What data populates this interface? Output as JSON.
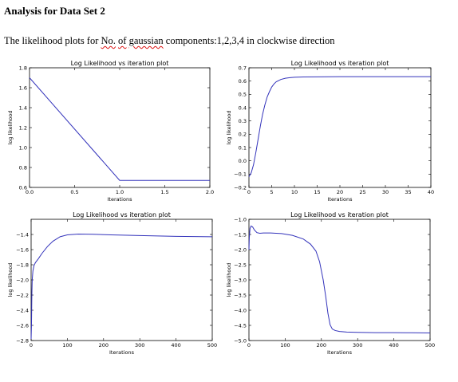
{
  "doc": {
    "heading": "Analysis for Data Set 2",
    "intro_before": "The likelihood plots for ",
    "intro_no": "No.",
    "intro_space1": " ",
    "intro_of": "of",
    "intro_space2": " ",
    "intro_gaussian": "gaussian",
    "intro_after": " components:1,2,3,4 in clockwise direction"
  },
  "chart_data": [
    {
      "type": "line",
      "title": "Log Likelihood vs iteration plot",
      "xlabel": "Iterations",
      "ylabel": "log likelihood",
      "xlim": [
        0,
        2
      ],
      "ylim": [
        0.6,
        1.8
      ],
      "xticks": [
        0.0,
        0.5,
        1.0,
        1.5,
        2.0
      ],
      "xtick_labels": [
        "0.0",
        "0.5",
        "1.0",
        "1.5",
        "2.0"
      ],
      "yticks": [
        0.6,
        0.8,
        1.0,
        1.2,
        1.4,
        1.6,
        1.8
      ],
      "ytick_labels": [
        "0.6",
        "0.8",
        "1.0",
        "1.2",
        "1.4",
        "1.6",
        "1.8"
      ],
      "color": "#3333bb",
      "x": [
        0,
        1,
        2
      ],
      "y": [
        1.7,
        0.67,
        0.67
      ]
    },
    {
      "type": "line",
      "title": "Log Likelihood vs iteration plot",
      "xlabel": "Iterations",
      "ylabel": "log likelihood",
      "xlim": [
        0,
        40
      ],
      "ylim": [
        -0.2,
        0.7
      ],
      "xticks": [
        0,
        5,
        10,
        15,
        20,
        25,
        30,
        35,
        40
      ],
      "xtick_labels": [
        "0",
        "5",
        "10",
        "15",
        "20",
        "25",
        "30",
        "35",
        "40"
      ],
      "yticks": [
        -0.2,
        -0.1,
        0.0,
        0.1,
        0.2,
        0.3,
        0.4,
        0.5,
        0.6,
        0.7
      ],
      "ytick_labels": [
        "−0.2",
        "−0.1",
        "0.0",
        "0.1",
        "0.2",
        "0.3",
        "0.4",
        "0.5",
        "0.6",
        "0.7"
      ],
      "color": "#3333bb",
      "x": [
        0,
        0.5,
        1,
        1.5,
        2,
        2.5,
        3,
        3.5,
        4,
        4.5,
        5,
        5.5,
        6,
        7,
        8,
        9,
        10,
        12,
        15,
        20,
        25,
        30,
        35,
        40
      ],
      "y": [
        -0.12,
        -0.09,
        -0.03,
        0.06,
        0.16,
        0.26,
        0.35,
        0.42,
        0.48,
        0.52,
        0.555,
        0.578,
        0.595,
        0.612,
        0.621,
        0.626,
        0.629,
        0.631,
        0.632,
        0.633,
        0.633,
        0.633,
        0.633,
        0.633
      ]
    },
    {
      "type": "line",
      "title": "Log Likelihood vs iteration plot",
      "xlabel": "Iterations",
      "ylabel": "log likelihood",
      "xlim": [
        0,
        500
      ],
      "ylim": [
        -2.8,
        -1.2
      ],
      "xticks": [
        0,
        100,
        200,
        300,
        400,
        500
      ],
      "xtick_labels": [
        "0",
        "100",
        "200",
        "300",
        "400",
        "500"
      ],
      "yticks": [
        -2.8,
        -2.6,
        -2.4,
        -2.2,
        -2.0,
        -1.8,
        -1.6,
        -1.4
      ],
      "ytick_labels": [
        "−2.8",
        "−2.6",
        "−2.4",
        "−2.2",
        "−2.0",
        "−1.8",
        "−1.6",
        "−1.4"
      ],
      "color": "#3333bb",
      "x": [
        0,
        1,
        2,
        3,
        5,
        8,
        12,
        20,
        30,
        45,
        60,
        80,
        100,
        130,
        170,
        220,
        300,
        400,
        500
      ],
      "y": [
        -2.78,
        -2.6,
        -2.2,
        -2.0,
        -1.88,
        -1.81,
        -1.77,
        -1.72,
        -1.65,
        -1.56,
        -1.49,
        -1.43,
        -1.405,
        -1.395,
        -1.398,
        -1.405,
        -1.415,
        -1.425,
        -1.43
      ]
    },
    {
      "type": "line",
      "title": "Log Likelihood vs iteration plot",
      "xlabel": "Iterations",
      "ylabel": "log likelihood",
      "xlim": [
        0,
        500
      ],
      "ylim": [
        -5.0,
        -1.0
      ],
      "xticks": [
        0,
        100,
        200,
        300,
        400,
        500
      ],
      "xtick_labels": [
        "0",
        "100",
        "200",
        "300",
        "400",
        "500"
      ],
      "yticks": [
        -5.0,
        -4.5,
        -4.0,
        -3.5,
        -3.0,
        -2.5,
        -2.0,
        -1.5,
        -1.0
      ],
      "ytick_labels": [
        "−5.0",
        "−4.5",
        "−4.0",
        "−3.5",
        "−3.0",
        "−2.5",
        "−2.0",
        "−1.5",
        "−1.0"
      ],
      "color": "#3333bb",
      "x": [
        0,
        1,
        3,
        6,
        10,
        15,
        22,
        30,
        40,
        60,
        90,
        120,
        150,
        170,
        185,
        195,
        205,
        212,
        218,
        224,
        230,
        238,
        250,
        270,
        300,
        350,
        400,
        450,
        500
      ],
      "y": [
        -2.0,
        -1.6,
        -1.3,
        -1.22,
        -1.25,
        -1.35,
        -1.44,
        -1.46,
        -1.45,
        -1.45,
        -1.47,
        -1.53,
        -1.65,
        -1.82,
        -2.05,
        -2.4,
        -3.0,
        -3.55,
        -4.1,
        -4.48,
        -4.62,
        -4.67,
        -4.7,
        -4.72,
        -4.73,
        -4.74,
        -4.74,
        -4.745,
        -4.75
      ]
    }
  ]
}
